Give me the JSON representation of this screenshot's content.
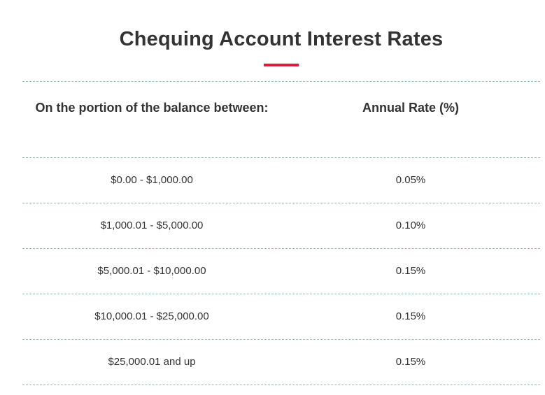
{
  "title": "Chequing Account Interest Rates",
  "accent_color": "#d81e3a",
  "divider_color": "#8fbfb3",
  "table": {
    "headers": {
      "balance": "On the portion of the balance between:",
      "rate": "Annual Rate (%)"
    },
    "rows": [
      {
        "balance": "$0.00 - $1,000.00",
        "rate": "0.05%"
      },
      {
        "balance": "$1,000.01 - $5,000.00",
        "rate": "0.10%"
      },
      {
        "balance": "$5,000.01 - $10,000.00",
        "rate": "0.15%"
      },
      {
        "balance": "$10,000.01 - $25,000.00",
        "rate": "0.15%"
      },
      {
        "balance": "$25,000.01 and up",
        "rate": "0.15%"
      }
    ]
  }
}
